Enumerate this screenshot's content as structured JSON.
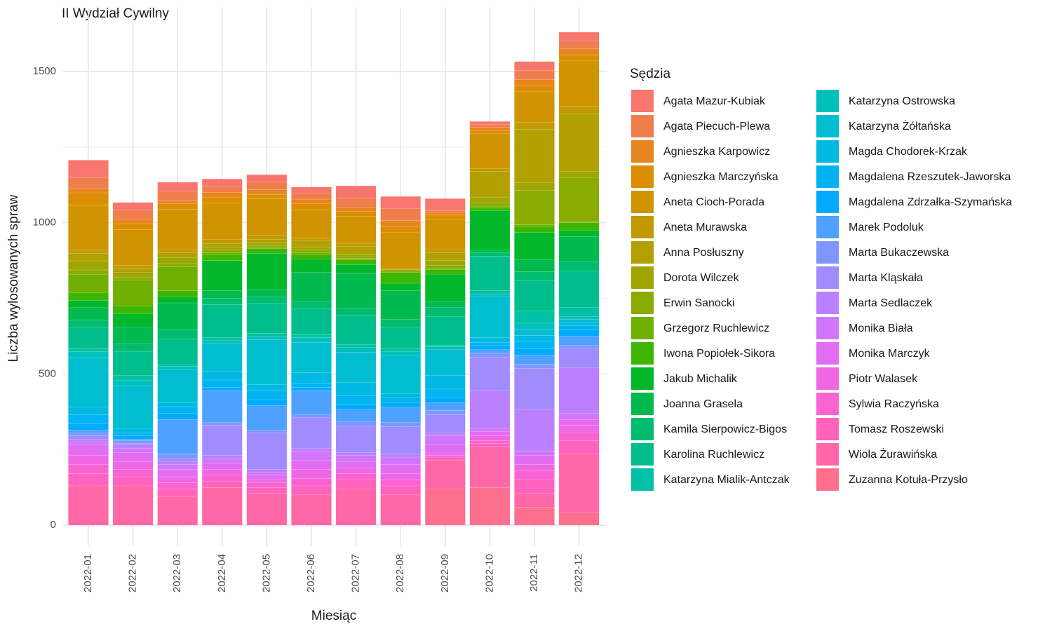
{
  "chart_data": {
    "type": "stacked_bar",
    "title": "II Wydział Cywilny",
    "x_label": "Miesiąc",
    "y_label": "Liczba wylosowanych spraw",
    "legend_title": "Sędzia",
    "legend": "right",
    "grid": true,
    "categories": [
      "2022-01",
      "2022-02",
      "2022-03",
      "2022-04",
      "2022-05",
      "2022-06",
      "2022-07",
      "2022-08",
      "2022-09",
      "2022-10",
      "2022-11",
      "2022-12"
    ],
    "ylim": [
      -81.5,
      1711.5
    ],
    "yticks": [
      0,
      500,
      1000,
      1500
    ],
    "series": [
      {
        "name": "Agata Mazur-Kubiak",
        "color": "#F8766D",
        "values": [
          58,
          25,
          30,
          25,
          25,
          20,
          40,
          40,
          40,
          10,
          30,
          30
        ]
      },
      {
        "name": "Agata Piecuch-Plewa",
        "color": "#F07E4D",
        "values": [
          35,
          30,
          30,
          20,
          25,
          20,
          30,
          40,
          5,
          10,
          30,
          25
        ]
      },
      {
        "name": "Agnieszka Karpowicz",
        "color": "#E7851E",
        "values": [
          15,
          15,
          10,
          15,
          15,
          15,
          15,
          20,
          10,
          10,
          20,
          20
        ]
      },
      {
        "name": "Agnieszka Marczyńska",
        "color": "#DC8D00",
        "values": [
          40,
          20,
          20,
          20,
          15,
          20,
          15,
          20,
          15,
          10,
          20,
          20
        ]
      },
      {
        "name": "Aneta Cioch-Porada",
        "color": "#CF9400",
        "values": [
          150,
          117,
          134,
          120,
          120,
          93,
          90,
          117,
          100,
          115,
          100,
          150
        ]
      },
      {
        "name": "Aneta Murawska",
        "color": "#C19A00",
        "values": [
          10,
          10,
          10,
          15,
          15,
          10,
          10,
          5,
          10,
          10,
          25,
          25
        ]
      },
      {
        "name": "Anna Posłuszny",
        "color": "#B1A000",
        "values": [
          25,
          15,
          15,
          10,
          10,
          20,
          25,
          0,
          25,
          85,
          175,
          190
        ]
      },
      {
        "name": "Dorota Wilczek",
        "color": "#9FA600",
        "values": [
          30,
          15,
          20,
          10,
          10,
          10,
          10,
          5,
          15,
          20,
          25,
          20
        ]
      },
      {
        "name": "Erwin Sanocki",
        "color": "#8AAB00",
        "values": [
          15,
          10,
          10,
          10,
          5,
          10,
          5,
          0,
          10,
          10,
          115,
          145
        ]
      },
      {
        "name": "Grzegorz Ruchlewicz",
        "color": "#70B000",
        "values": [
          60,
          85,
          80,
          5,
          5,
          5,
          5,
          5,
          5,
          5,
          5,
          5
        ]
      },
      {
        "name": "Iwona Popiołek-Sikora",
        "color": "#3DB600",
        "values": [
          25,
          25,
          20,
          20,
          15,
          15,
          15,
          35,
          15,
          10,
          20,
          25
        ]
      },
      {
        "name": "Jakub Michalik",
        "color": "#00B82A",
        "values": [
          25,
          45,
          20,
          100,
          120,
          45,
          30,
          25,
          90,
          130,
          90,
          20
        ]
      },
      {
        "name": "Joanna Grasela",
        "color": "#00BA50",
        "values": [
          40,
          55,
          90,
          25,
          25,
          95,
          115,
          95,
          20,
          10,
          40,
          85
        ]
      },
      {
        "name": "Kamila Sierpowicz-Bigos",
        "color": "#00BC6E",
        "values": [
          25,
          25,
          30,
          20,
          20,
          25,
          25,
          25,
          30,
          10,
          30,
          30
        ]
      },
      {
        "name": "Karolina Ruchlewicz",
        "color": "#00BE8B",
        "values": [
          70,
          80,
          85,
          110,
          100,
          85,
          95,
          70,
          95,
          115,
          100,
          120
        ]
      },
      {
        "name": "Katarzyna Mialik-Antczak",
        "color": "#00C0A5",
        "values": [
          10,
          15,
          5,
          10,
          10,
          10,
          10,
          10,
          5,
          10,
          40,
          30
        ]
      },
      {
        "name": "Katarzyna Ostrowska",
        "color": "#00C0BC",
        "values": [
          20,
          20,
          10,
          10,
          10,
          15,
          15,
          15,
          10,
          10,
          20,
          10
        ]
      },
      {
        "name": "Katarzyna Żółtańska",
        "color": "#00BDD0",
        "values": [
          164,
          140,
          110,
          90,
          149,
          100,
          100,
          125,
          85,
          135,
          20,
          10
        ]
      },
      {
        "name": "Magda Chodorek-Krzak",
        "color": "#00B9E2",
        "values": [
          25,
          15,
          15,
          30,
          20,
          35,
          45,
          15,
          45,
          15,
          20,
          10
        ]
      },
      {
        "name": "Magdalena Rzeszutek-Jaworska",
        "color": "#00B3F1",
        "values": [
          30,
          10,
          20,
          25,
          30,
          15,
          30,
          15,
          30,
          10,
          25,
          15
        ]
      },
      {
        "name": "Magdalena Zdrzałka-Szymańska",
        "color": "#00ABFD",
        "values": [
          20,
          10,
          20,
          10,
          20,
          10,
          15,
          15,
          15,
          15,
          20,
          20
        ]
      },
      {
        "name": "Marek Podoluk",
        "color": "#4EA1FF",
        "values": [
          10,
          5,
          115,
          105,
          80,
          80,
          40,
          50,
          25,
          10,
          30,
          30
        ]
      },
      {
        "name": "Marta Bukaczewska",
        "color": "#8096FF",
        "values": [
          10,
          10,
          15,
          10,
          10,
          10,
          15,
          15,
          15,
          15,
          15,
          10
        ]
      },
      {
        "name": "Marta Kląskała",
        "color": "#A08BFF",
        "values": [
          10,
          5,
          10,
          100,
          120,
          100,
          87,
          90,
          60,
          110,
          135,
          65
        ]
      },
      {
        "name": "Marta Sedlaczek",
        "color": "#BB80FF",
        "values": [
          10,
          10,
          10,
          10,
          10,
          10,
          10,
          10,
          10,
          125,
          138,
          150
        ]
      },
      {
        "name": "Monika Biała",
        "color": "#D176FC",
        "values": [
          10,
          15,
          15,
          15,
          10,
          30,
          20,
          25,
          30,
          10,
          15,
          20
        ]
      },
      {
        "name": "Monika Marczyk",
        "color": "#E26DF2",
        "values": [
          35,
          30,
          25,
          20,
          15,
          30,
          20,
          30,
          30,
          15,
          30,
          20
        ]
      },
      {
        "name": "Piotr Walasek",
        "color": "#EF67E3",
        "values": [
          30,
          25,
          20,
          20,
          10,
          30,
          20,
          20,
          5,
          15,
          20,
          25
        ]
      },
      {
        "name": "Sylwia Raczyńska",
        "color": "#FA63D1",
        "values": [
          30,
          25,
          20,
          20,
          15,
          25,
          20,
          20,
          5,
          10,
          30,
          25
        ]
      },
      {
        "name": "Tomasz Roszewski",
        "color": "#FF63BD",
        "values": [
          40,
          30,
          25,
          20,
          20,
          30,
          30,
          30,
          10,
          10,
          45,
          45
        ]
      },
      {
        "name": "Wiola Żurawińska",
        "color": "#FF67A6",
        "values": [
          130,
          130,
          95,
          125,
          105,
          100,
          120,
          100,
          95,
          135,
          45,
          195
        ]
      },
      {
        "name": "Zuzanna Kotuła-Przysło",
        "color": "#FC6F8D",
        "values": [
          0,
          0,
          0,
          0,
          0,
          0,
          0,
          0,
          120,
          125,
          60,
          40
        ]
      }
    ]
  }
}
